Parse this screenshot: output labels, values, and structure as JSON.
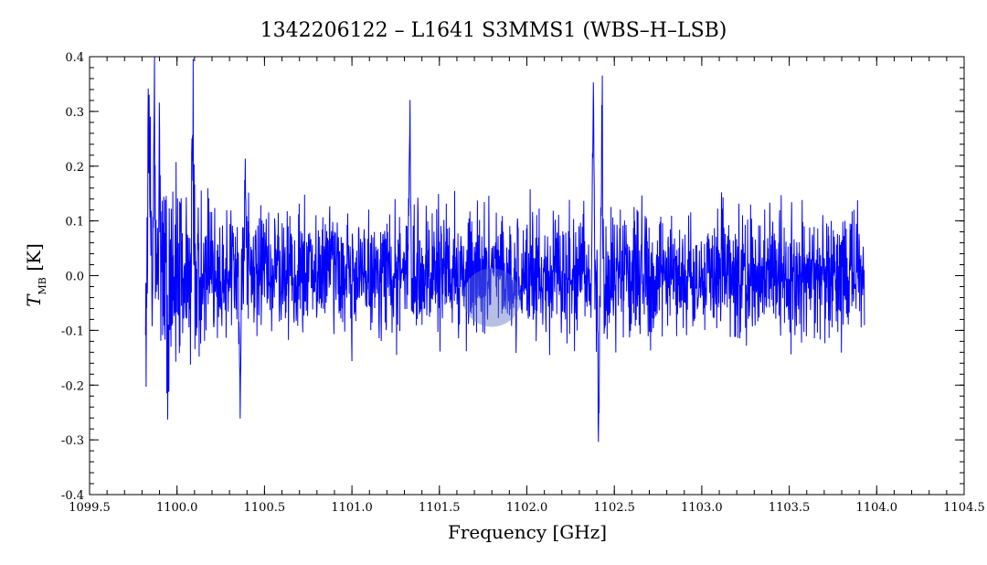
{
  "chart_data": {
    "type": "line",
    "title": "1342206122 – L1641 S3MMS1 (WBS–H–LSB)",
    "xlabel": "Frequency [GHz]",
    "ylabel_symbol": "T",
    "ylabel_subscript": "MB",
    "ylabel_unit": "[K]",
    "xlim": [
      1099.5,
      1104.5
    ],
    "ylim": [
      -0.4,
      0.4
    ],
    "x_ticks": [
      "1099.5",
      "1100.0",
      "1100.5",
      "1101.0",
      "1101.5",
      "1102.0",
      "1102.5",
      "1103.0",
      "1103.5",
      "1104.0",
      "1104.5"
    ],
    "y_ticks": [
      "-0.4",
      "-0.3",
      "-0.2",
      "-0.1",
      "0.0",
      "0.1",
      "0.2",
      "0.3",
      "0.4"
    ],
    "grid": false,
    "line_color": "#0000ff",
    "marker_color": "#6070c0",
    "highlight_marker": {
      "x": 1101.8,
      "y": -0.04
    },
    "series": [
      {
        "x_range": [
          1099.82,
          1103.93
        ],
        "noise_amplitude_K": 0.055,
        "features": [
          {
            "x": 1099.82,
            "y": -0.18
          },
          {
            "x": 1099.84,
            "y": 0.34
          },
          {
            "x": 1099.87,
            "y": 0.36
          },
          {
            "x": 1099.9,
            "y": 0.29
          },
          {
            "x": 1099.95,
            "y": -0.24
          },
          {
            "x": 1100.09,
            "y": 0.29
          },
          {
            "x": 1100.36,
            "y": -0.24
          },
          {
            "x": 1100.39,
            "y": 0.24
          },
          {
            "x": 1101.33,
            "y": 0.27
          },
          {
            "x": 1102.38,
            "y": 0.33
          },
          {
            "x": 1102.41,
            "y": -0.32
          },
          {
            "x": 1102.43,
            "y": 0.34
          }
        ]
      }
    ]
  }
}
